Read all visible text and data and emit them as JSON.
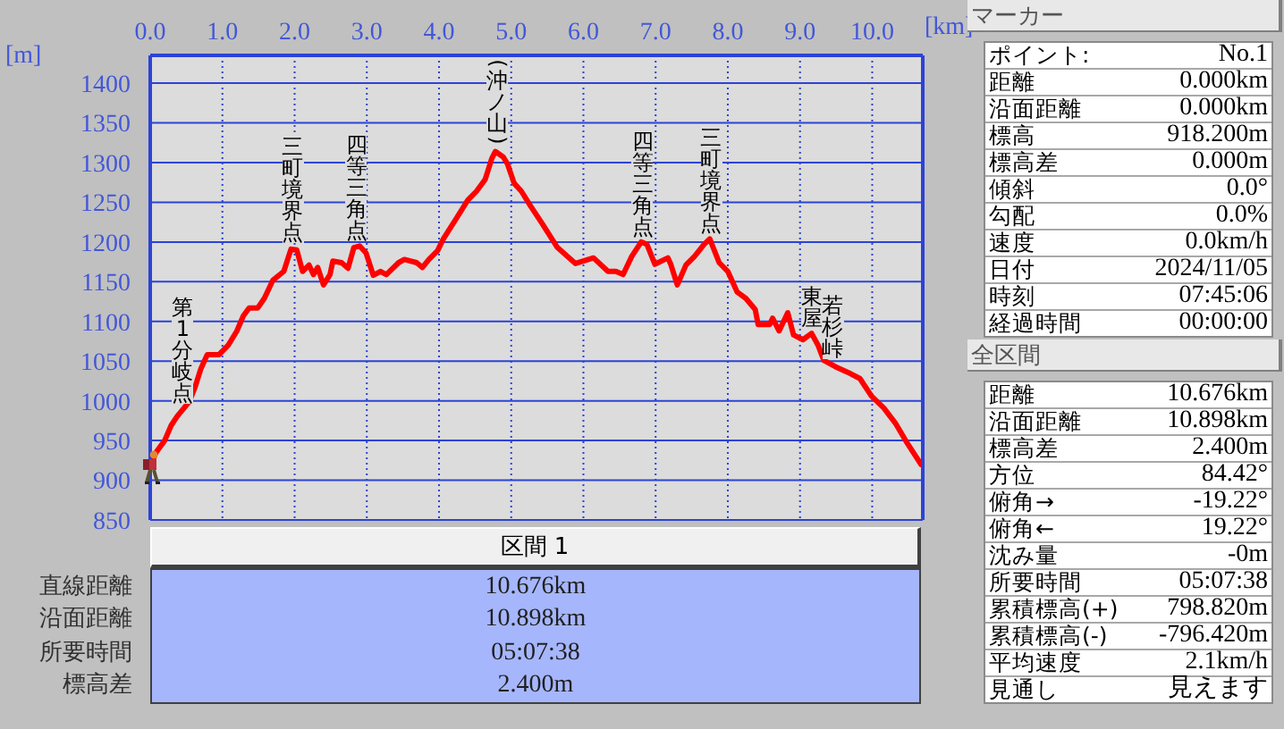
{
  "chart_data": [
    {
      "type": "line",
      "xlabel": "[km]",
      "ylabel": "[m]",
      "color": "#ff0000",
      "x": [
        0,
        0.08,
        0.2,
        0.29,
        0.37,
        0.54,
        0.62,
        0.7,
        0.79,
        0.95,
        1.08,
        1.2,
        1.29,
        1.37,
        1.49,
        1.58,
        1.7,
        1.85,
        1.95,
        2.03,
        2.11,
        2.2,
        2.26,
        2.32,
        2.4,
        2.49,
        2.53,
        2.65,
        2.74,
        2.82,
        2.9,
        2.99,
        3.09,
        3.19,
        3.27,
        3.44,
        3.52,
        3.69,
        3.77,
        3.86,
        3.98,
        4.06,
        4.27,
        4.4,
        4.52,
        4.64,
        4.73,
        4.78,
        4.89,
        4.95,
        5.04,
        5.14,
        5.27,
        5.43,
        5.64,
        5.89,
        6.14,
        6.34,
        6.45,
        6.55,
        6.67,
        6.8,
        6.88,
        6.99,
        7.17,
        7.21,
        7.3,
        7.42,
        7.54,
        7.67,
        7.75,
        7.88,
        8,
        8.13,
        8.25,
        8.38,
        8.42,
        8.58,
        8.62,
        8.71,
        8.83,
        8.91,
        9.04,
        9.16,
        9.25,
        9.33,
        9.49,
        9.66,
        9.83,
        9.99,
        10.16,
        10.32,
        10.49,
        10.676
      ],
      "values": [
        918,
        935,
        950,
        969,
        980,
        999,
        1017,
        1040,
        1058,
        1058,
        1070,
        1088,
        1107,
        1117,
        1117,
        1129,
        1152,
        1163,
        1191,
        1190,
        1163,
        1171,
        1159,
        1168,
        1146,
        1159,
        1176,
        1174,
        1167,
        1193,
        1195,
        1186,
        1158,
        1163,
        1159,
        1174,
        1178,
        1174,
        1168,
        1178,
        1189,
        1204,
        1234,
        1253,
        1264,
        1279,
        1305,
        1314,
        1307,
        1298,
        1274,
        1264,
        1245,
        1223,
        1193,
        1173,
        1180,
        1163,
        1163,
        1159,
        1182,
        1200,
        1197,
        1172,
        1180,
        1172,
        1146,
        1171,
        1182,
        1197,
        1204,
        1174,
        1163,
        1137,
        1129,
        1115,
        1096,
        1096,
        1104,
        1088,
        1111,
        1083,
        1077,
        1085,
        1070,
        1051,
        1043,
        1036,
        1028,
        1006,
        991,
        972,
        946,
        920
      ],
      "xlim": [
        0,
        10.7
      ],
      "xticks": [
        {
          "value": 0,
          "label": "0.0"
        },
        {
          "value": 1,
          "label": "1.0"
        },
        {
          "value": 2,
          "label": "2.0"
        },
        {
          "value": 3,
          "label": "3.0"
        },
        {
          "value": 4,
          "label": "4.0"
        },
        {
          "value": 5,
          "label": "5.0"
        },
        {
          "value": 6,
          "label": "6.0"
        },
        {
          "value": 7,
          "label": "7.0"
        },
        {
          "value": 8,
          "label": "8.0"
        },
        {
          "value": 9,
          "label": "9.0"
        },
        {
          "value": 10,
          "label": "10.0"
        }
      ],
      "ylim": [
        850,
        1435
      ],
      "yticks": [
        850,
        900,
        950,
        1000,
        1050,
        1100,
        1150,
        1200,
        1250,
        1300,
        1350,
        1400
      ],
      "grid": true,
      "annotations": [
        {
          "text": "第1分岐点",
          "x": 0.45,
          "y": 990
        },
        {
          "text": "三町境界点",
          "x": 1.97,
          "y": 1191
        },
        {
          "text": "四等三角点",
          "x": 2.86,
          "y": 1194
        },
        {
          "text": "(沖ノ山)",
          "x": 4.8,
          "y": 1313
        },
        {
          "text": "四等三角点",
          "x": 6.82,
          "y": 1199
        },
        {
          "text": "三町境界点",
          "x": 7.77,
          "y": 1203
        },
        {
          "text": "東屋",
          "x": 9.16,
          "y": 1085
        },
        {
          "text": "若杉峠",
          "x": 9.45,
          "y": 1045
        }
      ]
    },
    {
      "type": "other",
      "title": "マーカー",
      "annotations": [
        "ポイント:",
        "No.1",
        "距離",
        "0.000km",
        "沿面距離",
        "0.000km",
        "標高",
        "918.200m",
        "標高差",
        "0.000m",
        "傾斜",
        "0.0°",
        "勾配",
        "0.0%",
        "速度",
        "0.0km/h",
        "日付",
        "2024/11/05",
        "時刻",
        "07:45:06",
        "経過時間",
        "00:00:00"
      ]
    },
    {
      "type": "other",
      "title": "全区間",
      "annotations": [
        "距離",
        "10.676km",
        "沿面距離",
        "10.898km",
        "標高差",
        "2.400m",
        "方位",
        "84.42°",
        "俯角→",
        "-19.22°",
        "俯角←",
        "19.22°",
        "沈み量",
        "-0m",
        "所要時間",
        "05:07:38",
        "累積標高(+)",
        "798.820m",
        "累積標高(-)",
        "-796.420m",
        "平均速度",
        "2.1km/h",
        "見通し",
        "見えます"
      ]
    },
    {
      "type": "other",
      "title": "区間 1",
      "annotations": [
        "直線距離",
        "10.676km",
        "沿面距離",
        "10.898km",
        "所要時間",
        "05:07:38",
        "標高差",
        "2.400m"
      ]
    }
  ]
}
